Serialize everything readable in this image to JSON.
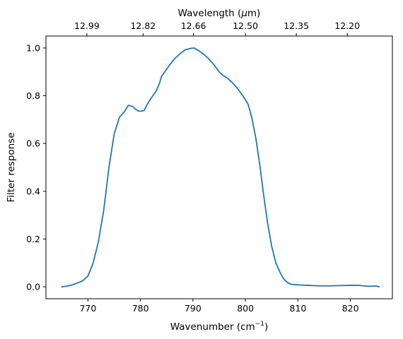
{
  "chart_data": {
    "type": "line",
    "xlabel_main": "Wavenumber (cm",
    "xlabel_sup": "−1",
    "xlabel_end": ")",
    "ylabel": "Filter response",
    "top_xlabel_main": "Wavelength (",
    "top_xlabel_mu": "μ",
    "top_xlabel_end": "m)",
    "xlim": [
      762,
      828
    ],
    "ylim": [
      -0.05,
      1.05
    ],
    "xticks": [
      770,
      780,
      790,
      800,
      810,
      820
    ],
    "xtick_labels": [
      "770",
      "780",
      "790",
      "800",
      "810",
      "820"
    ],
    "yticks": [
      0.0,
      0.2,
      0.4,
      0.6,
      0.8,
      1.0
    ],
    "ytick_labels": [
      "0.0",
      "0.2",
      "0.4",
      "0.6",
      "0.8",
      "1.0"
    ],
    "top_ticks": [
      {
        "wavenumber": 769.8,
        "label": "12.99"
      },
      {
        "wavenumber": 780.5,
        "label": "12.82"
      },
      {
        "wavenumber": 790.1,
        "label": "12.66"
      },
      {
        "wavenumber": 800.0,
        "label": "12.50"
      },
      {
        "wavenumber": 809.7,
        "label": "12.35"
      },
      {
        "wavenumber": 819.4,
        "label": "12.20"
      }
    ],
    "grid": false,
    "series": [
      {
        "color": "#1f77b4",
        "x": [
          765,
          766,
          767,
          768,
          769,
          770,
          771,
          772,
          773,
          774,
          775,
          776,
          777,
          777.7,
          778.5,
          779,
          779.5,
          780,
          780.7,
          781.2,
          781.6,
          782.2,
          783,
          783.6,
          784,
          784.8,
          785.6,
          786.5,
          787.5,
          788.5,
          789.5,
          790.2,
          791,
          792,
          793,
          794,
          795,
          795.7,
          796.5,
          797.5,
          798.5,
          799.5,
          800.5,
          801.2,
          802,
          802.8,
          803.5,
          804.2,
          805,
          805.8,
          806.5,
          807.2,
          808,
          808.8,
          809.5,
          810.2,
          812,
          814,
          816,
          818,
          820,
          821.5,
          822.5,
          823.5,
          824.5,
          825,
          825.5
        ],
        "y": [
          0.0,
          0.003,
          0.008,
          0.016,
          0.025,
          0.045,
          0.1,
          0.19,
          0.32,
          0.5,
          0.64,
          0.71,
          0.735,
          0.76,
          0.755,
          0.745,
          0.737,
          0.735,
          0.738,
          0.76,
          0.775,
          0.795,
          0.82,
          0.85,
          0.88,
          0.905,
          0.93,
          0.955,
          0.975,
          0.992,
          0.998,
          1.0,
          0.99,
          0.975,
          0.955,
          0.93,
          0.9,
          0.885,
          0.875,
          0.855,
          0.83,
          0.8,
          0.765,
          0.71,
          0.62,
          0.5,
          0.38,
          0.27,
          0.17,
          0.1,
          0.065,
          0.035,
          0.018,
          0.01,
          0.009,
          0.008,
          0.006,
          0.004,
          0.004,
          0.005,
          0.006,
          0.006,
          0.004,
          0.002,
          0.003,
          0.003,
          0.0
        ]
      }
    ]
  }
}
